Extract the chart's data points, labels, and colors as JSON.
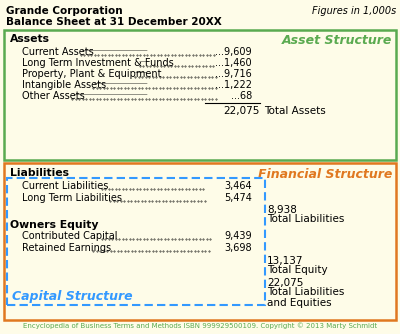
{
  "title1": "Grande Corporation",
  "title2": "Balance Sheet at 31 December 20XX",
  "figures_note": "Figures in 1,000s",
  "bg_color": "#fefce8",
  "asset_items": [
    [
      "Current Assets",
      "9,609"
    ],
    [
      "Long Term Investment & Funds",
      "1,460"
    ],
    [
      "Property, Plant & Equipment",
      "9,716"
    ],
    [
      "Intangible Assets",
      "1,222"
    ],
    [
      "Other Assets",
      "68"
    ]
  ],
  "asset_total_value": "22,075",
  "asset_total_label": "Total Assets",
  "asset_label": "Asset Structure",
  "asset_box_color": "#5aaa50",
  "asset_label_color": "#5aaa50",
  "liab_items": [
    [
      "Current Liabilities",
      "3,464"
    ],
    [
      "Long Term Liabilities",
      "5,474"
    ]
  ],
  "liab_total_value": "8,938",
  "liab_total_label": "Total Liabilities",
  "fin_label": "Financial Structure",
  "fin_box_color": "#e07820",
  "fin_label_color": "#e07820",
  "eq_items": [
    [
      "Contributed Capital",
      "9,439"
    ],
    [
      "Retained Earnings",
      "3,698"
    ]
  ],
  "eq_total_value": "13,137",
  "eq_total_label": "Total Equity",
  "combined_value": "22,075",
  "combined_label": "Total Liabilities\nand Equities",
  "capital_label": "Capital Structure",
  "capital_color": "#3399ff",
  "cap_box_color": "#3399ff",
  "footer": "Encyclopedia of Business Terms and Methods ISBN 999929500109. Copyright © 2013 Marty Schmidt",
  "footer_color": "#5aaa50"
}
